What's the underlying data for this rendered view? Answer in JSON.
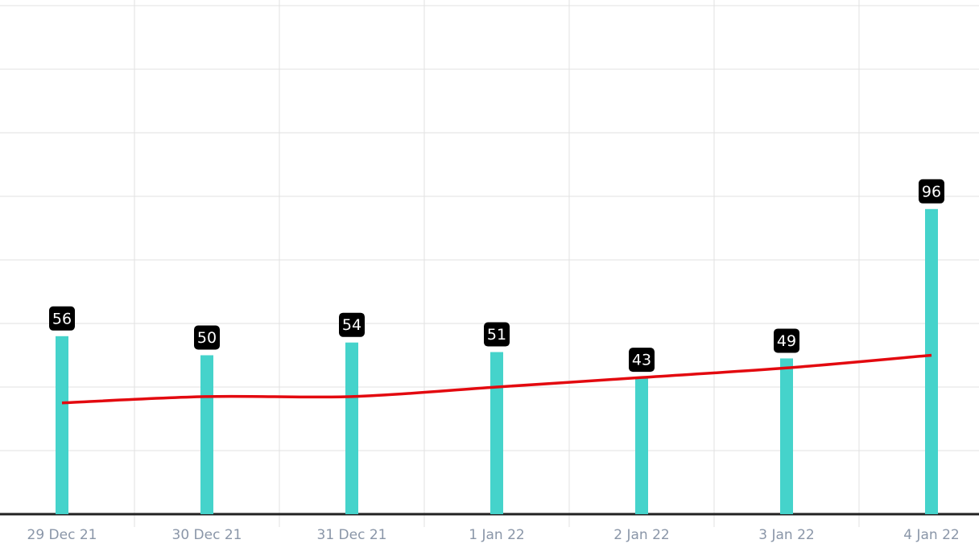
{
  "chart_data": {
    "type": "bar",
    "categories": [
      "29 Dec 21",
      "30 Dec 21",
      "31 Dec 21",
      "1 Jan 22",
      "2 Jan 22",
      "3 Jan 22",
      "4 Jan 22"
    ],
    "series": [
      {
        "type": "bar",
        "color": "#45d3cb",
        "values": [
          56,
          50,
          54,
          51,
          43,
          49,
          96
        ]
      },
      {
        "type": "line",
        "color": "#e3090f",
        "values": [
          35,
          37,
          37,
          40,
          43,
          46,
          50
        ]
      }
    ],
    "ylim": [
      0,
      160
    ],
    "yticks": [
      0,
      20,
      40,
      60,
      80,
      100,
      120,
      140,
      160
    ],
    "show_ytick_labels": false,
    "grid": true
  }
}
